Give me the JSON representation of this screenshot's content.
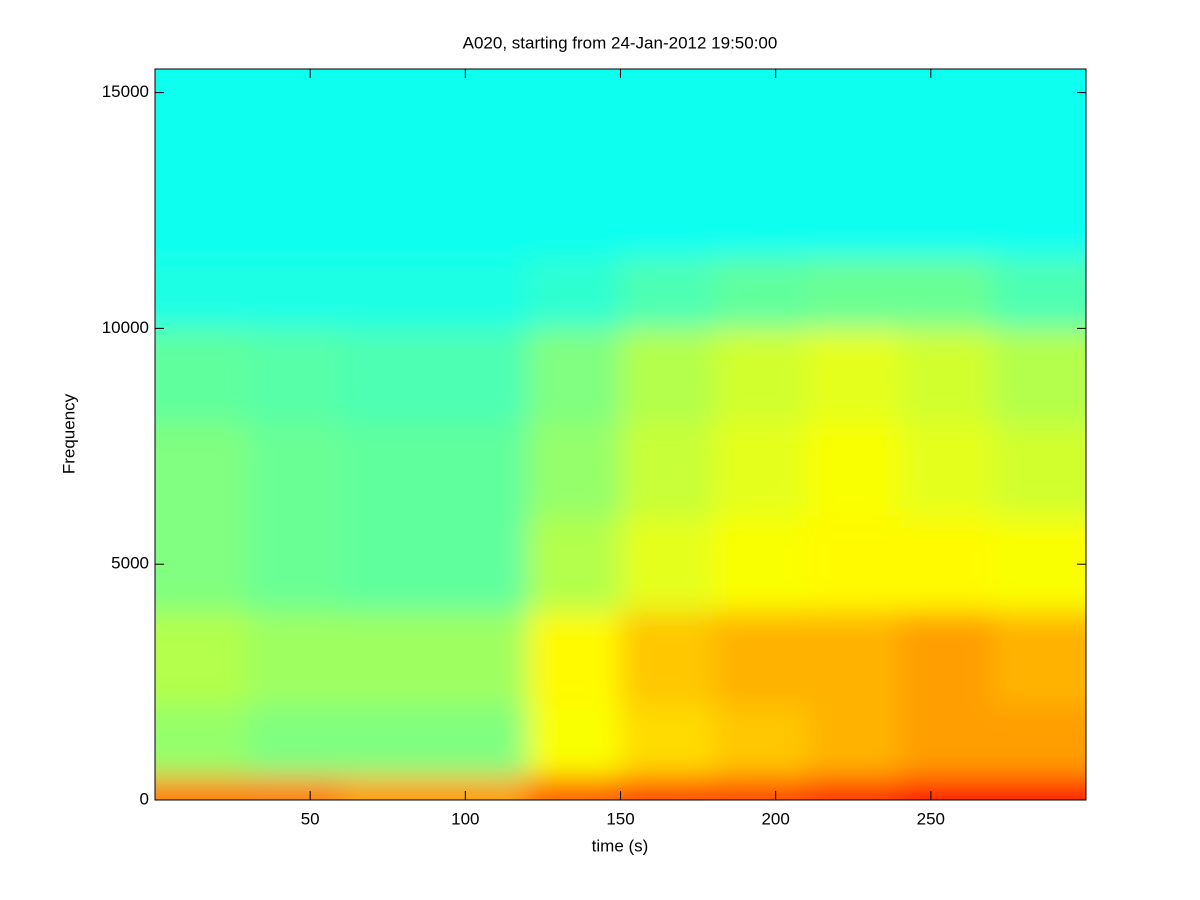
{
  "chart_data": {
    "type": "heatmap",
    "title": "A020, starting from 24-Jan-2012 19:50:00",
    "xlabel": "time (s)",
    "ylabel": "Frequency",
    "xlim": [
      0,
      300
    ],
    "ylim": [
      0,
      15500
    ],
    "xticks": [
      50,
      100,
      150,
      200,
      250
    ],
    "yticks": [
      0,
      5000,
      10000,
      15000
    ],
    "x_edges": [
      0,
      30,
      60,
      90,
      120,
      150,
      180,
      210,
      240,
      270,
      300
    ],
    "y_edges": [
      0,
      500,
      2000,
      4000,
      6000,
      8000,
      10000,
      11500,
      15500
    ],
    "colormap": "jet",
    "values": [
      [
        0.75,
        0.75,
        0.72,
        0.72,
        0.78,
        0.8,
        0.8,
        0.82,
        0.85,
        0.85
      ],
      [
        0.52,
        0.5,
        0.5,
        0.5,
        0.62,
        0.66,
        0.68,
        0.7,
        0.72,
        0.72
      ],
      [
        0.55,
        0.53,
        0.53,
        0.53,
        0.63,
        0.68,
        0.7,
        0.7,
        0.72,
        0.7
      ],
      [
        0.5,
        0.48,
        0.47,
        0.47,
        0.55,
        0.6,
        0.62,
        0.63,
        0.63,
        0.62
      ],
      [
        0.5,
        0.48,
        0.47,
        0.47,
        0.52,
        0.57,
        0.6,
        0.62,
        0.6,
        0.58
      ],
      [
        0.47,
        0.46,
        0.45,
        0.45,
        0.5,
        0.55,
        0.58,
        0.6,
        0.58,
        0.55
      ],
      [
        0.4,
        0.4,
        0.4,
        0.4,
        0.42,
        0.45,
        0.47,
        0.48,
        0.48,
        0.45
      ],
      [
        0.39,
        0.39,
        0.39,
        0.39,
        0.39,
        0.39,
        0.39,
        0.39,
        0.39,
        0.39
      ]
    ]
  }
}
